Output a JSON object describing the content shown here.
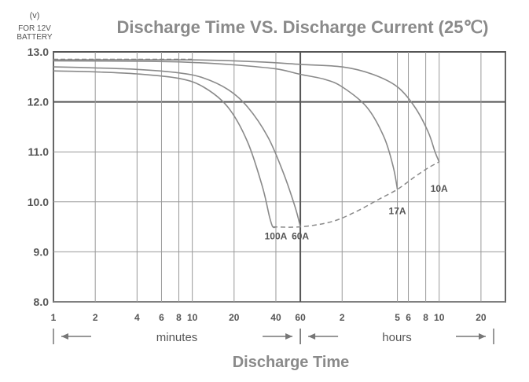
{
  "chart_data": {
    "type": "line",
    "title": "Discharge Time VS. Discharge Current (25℃)",
    "ylabel_unit": "(v)",
    "ylabel_lines": [
      "FOR 12V",
      "BATTERY"
    ],
    "xlabel": "Discharge Time",
    "y_axis": {
      "range": [
        8.0,
        13.0
      ],
      "ticks": [
        8.0,
        9.0,
        10.0,
        11.0,
        12.0,
        13.0
      ],
      "tick_labels": [
        "8.0",
        "9.0",
        "10.0",
        "11.0",
        "12.0",
        "13.0"
      ]
    },
    "x_axis": {
      "scale": "log",
      "unit": "minutes",
      "range": [
        1,
        1800
      ],
      "ticks": [
        {
          "minutes": 1,
          "label": "1"
        },
        {
          "minutes": 2,
          "label": "2"
        },
        {
          "minutes": 4,
          "label": "4"
        },
        {
          "minutes": 6,
          "label": "6"
        },
        {
          "minutes": 8,
          "label": "8"
        },
        {
          "minutes": 10,
          "label": "10"
        },
        {
          "minutes": 20,
          "label": "20"
        },
        {
          "minutes": 40,
          "label": "40"
        },
        {
          "minutes": 60,
          "label": "60"
        },
        {
          "minutes": 120,
          "label": "2"
        },
        {
          "minutes": 300,
          "label": "5"
        },
        {
          "minutes": 360,
          "label": "6"
        },
        {
          "minutes": 480,
          "label": "8"
        },
        {
          "minutes": 600,
          "label": "10"
        },
        {
          "minutes": 1200,
          "label": "20"
        }
      ],
      "segments": [
        {
          "label": "minutes",
          "from": 1,
          "to": 60
        },
        {
          "label": "hours",
          "from": 60,
          "to": 1800
        }
      ]
    },
    "series": [
      {
        "name": "100A",
        "label_at": {
          "x": 40,
          "y": 9.25
        },
        "points": [
          [
            1,
            12.62
          ],
          [
            2,
            12.6
          ],
          [
            4,
            12.56
          ],
          [
            8,
            12.47
          ],
          [
            12,
            12.3
          ],
          [
            18,
            11.9
          ],
          [
            25,
            11.2
          ],
          [
            32,
            10.3
          ],
          [
            36,
            9.7
          ],
          [
            38,
            9.5
          ],
          [
            40,
            9.5
          ]
        ]
      },
      {
        "name": "60A",
        "label_at": {
          "x": 60,
          "y": 9.25
        },
        "points": [
          [
            1,
            12.7
          ],
          [
            2,
            12.68
          ],
          [
            4,
            12.65
          ],
          [
            8,
            12.58
          ],
          [
            12,
            12.48
          ],
          [
            18,
            12.25
          ],
          [
            25,
            11.9
          ],
          [
            35,
            11.3
          ],
          [
            45,
            10.6
          ],
          [
            55,
            9.9
          ],
          [
            60,
            9.5
          ]
        ]
      },
      {
        "name": "17A",
        "label_at": {
          "x": 300,
          "y": 9.75
        },
        "points": [
          [
            1,
            12.82
          ],
          [
            5,
            12.81
          ],
          [
            10,
            12.79
          ],
          [
            20,
            12.74
          ],
          [
            40,
            12.66
          ],
          [
            60,
            12.55
          ],
          [
            90,
            12.45
          ],
          [
            120,
            12.3
          ],
          [
            180,
            11.9
          ],
          [
            240,
            11.3
          ],
          [
            280,
            10.7
          ],
          [
            300,
            10.25
          ]
        ]
      },
      {
        "name": "10A",
        "label_at": {
          "x": 600,
          "y": 10.2
        },
        "points": [
          [
            1,
            12.84
          ],
          [
            10,
            12.84
          ],
          [
            30,
            12.8
          ],
          [
            60,
            12.75
          ],
          [
            120,
            12.7
          ],
          [
            200,
            12.55
          ],
          [
            300,
            12.3
          ],
          [
            400,
            11.9
          ],
          [
            500,
            11.4
          ],
          [
            560,
            11.0
          ],
          [
            600,
            10.8
          ]
        ]
      }
    ],
    "end_voltage_curve": {
      "style": "dashed",
      "points": [
        [
          38,
          9.5
        ],
        [
          60,
          9.5
        ],
        [
          100,
          9.6
        ],
        [
          150,
          9.8
        ],
        [
          220,
          10.05
        ],
        [
          300,
          10.25
        ],
        [
          400,
          10.5
        ],
        [
          500,
          10.68
        ],
        [
          600,
          10.8
        ]
      ]
    },
    "initial_dashed_line": {
      "style": "dashed",
      "y": 12.85,
      "x_range": [
        1,
        10
      ]
    },
    "grid": true
  }
}
